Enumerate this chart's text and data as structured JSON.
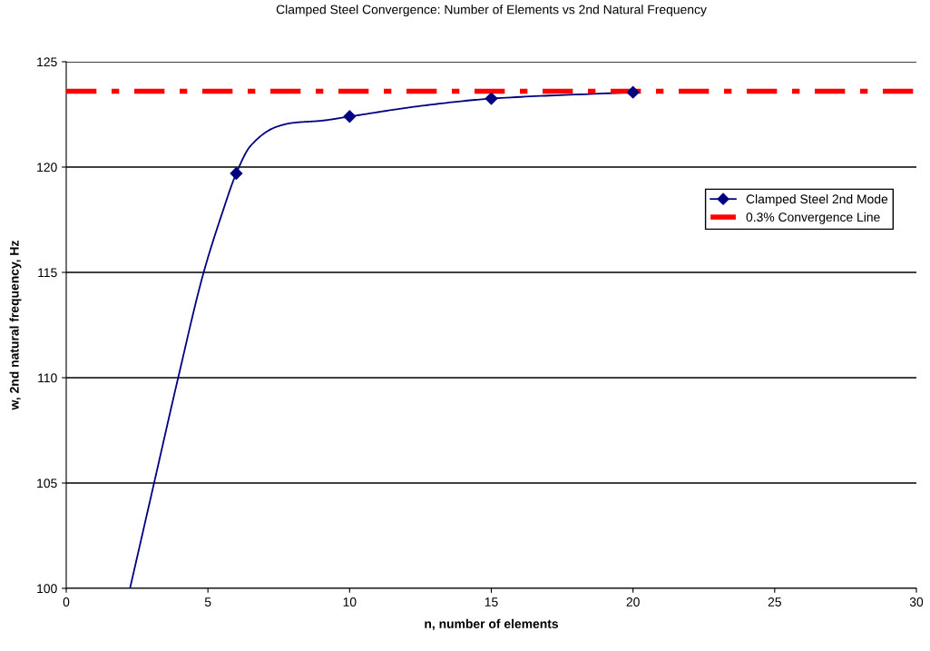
{
  "chart_data": {
    "type": "line",
    "title": "Clamped Steel Convergence: Number of Elements vs 2nd Natural Frequency",
    "xlabel": "n, number of elements",
    "ylabel": "w, 2nd natural frequency, Hz",
    "xlim": [
      0,
      30
    ],
    "xticks": [
      0,
      5,
      10,
      15,
      20,
      25,
      30
    ],
    "ylim": [
      100,
      125
    ],
    "yticks": [
      100,
      105,
      110,
      115,
      120,
      125
    ],
    "grid": "y",
    "legend": "right",
    "series": [
      {
        "color": "#000080",
        "marker": "none",
        "x": [
          2.25,
          3.1,
          3.95,
          4.85,
          5.5,
          6,
          6.5,
          7.4,
          8,
          9,
          10,
          12.5,
          15,
          20
        ],
        "values": [
          100,
          105,
          110,
          115,
          117.8,
          119.7,
          121.0,
          121.9,
          122.1,
          122.2,
          122.4,
          122.9,
          123.25,
          123.55
        ]
      },
      {
        "type": "scatter",
        "name": "Clamped Steel 2nd Mode",
        "color": "#000080",
        "marker": "diamond",
        "x": [
          6,
          10,
          15,
          20
        ],
        "values": [
          119.7,
          122.4,
          123.25,
          123.55
        ]
      }
    ],
    "ref_lines": [
      {
        "axis": "y",
        "value": 123.6,
        "label": "0.3% Convergence Line",
        "color": "#ff0000",
        "line_style": "dashdot"
      }
    ]
  }
}
